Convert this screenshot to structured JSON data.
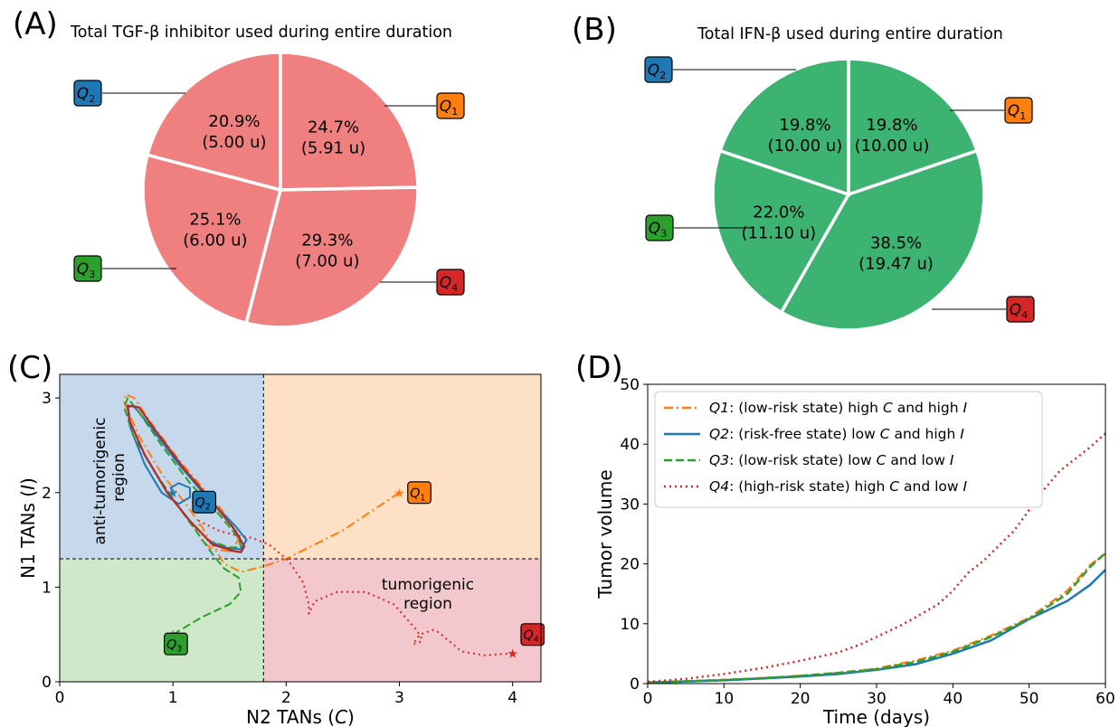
{
  "panels": {
    "A": {
      "label": "(A)",
      "title": "Total TGF-β inhibitor used during entire duration"
    },
    "B": {
      "label": "(B)",
      "title": "Total IFN-β used during entire duration"
    },
    "C": {
      "label": "(C)",
      "region_anti_line1": "anti-tumorigenic",
      "region_anti_line2": "region",
      "region_tumor_line1": "tumorigenic",
      "region_tumor_line2": "region"
    },
    "D": {
      "label": "(D)"
    }
  },
  "quadrant_labels": {
    "Q1": {
      "base": "Q",
      "sub": "1",
      "color": "#ff7f0e"
    },
    "Q2": {
      "base": "Q",
      "sub": "2",
      "color": "#1f77b4"
    },
    "Q3": {
      "base": "Q",
      "sub": "3",
      "color": "#2ca02c"
    },
    "Q4": {
      "base": "Q",
      "sub": "4",
      "color": "#d62728"
    }
  },
  "chart_data": [
    {
      "type": "pie",
      "panel": "A",
      "title": "Total TGF-β inhibitor used during entire duration",
      "color": "#f08080",
      "slices": [
        {
          "quadrant": "Q1",
          "percent": 24.7,
          "amount": 5.91,
          "pct_label": "24.7%",
          "amt_label": "(5.91 u)"
        },
        {
          "quadrant": "Q4",
          "percent": 29.3,
          "amount": 7.0,
          "pct_label": "29.3%",
          "amt_label": "(7.00 u)"
        },
        {
          "quadrant": "Q3",
          "percent": 25.1,
          "amount": 6.0,
          "pct_label": "25.1%",
          "amt_label": "(6.00 u)"
        },
        {
          "quadrant": "Q2",
          "percent": 20.9,
          "amount": 5.0,
          "pct_label": "20.9%",
          "amt_label": "(5.00 u)"
        }
      ]
    },
    {
      "type": "pie",
      "panel": "B",
      "title": "Total IFN-β used during entire duration",
      "color": "#3cb371",
      "slices": [
        {
          "quadrant": "Q1",
          "percent": 19.8,
          "amount": 10.0,
          "pct_label": "19.8%",
          "amt_label": "(10.00 u)"
        },
        {
          "quadrant": "Q4",
          "percent": 38.5,
          "amount": 19.47,
          "pct_label": "38.5%",
          "amt_label": "(19.47 u)"
        },
        {
          "quadrant": "Q3",
          "percent": 22.0,
          "amount": 11.1,
          "pct_label": "22.0%",
          "amt_label": "(11.10 u)"
        },
        {
          "quadrant": "Q2",
          "percent": 19.8,
          "amount": 10.0,
          "pct_label": "19.8%",
          "amt_label": "(10.00 u)"
        }
      ]
    },
    {
      "type": "line",
      "panel": "C",
      "xlabel": "N2 TANs (C)",
      "ylabel": "N1 TANs (I)",
      "xlim": [
        0,
        4.25
      ],
      "ylim": [
        0,
        3.25
      ],
      "xticks": [
        0,
        1,
        2,
        3,
        4
      ],
      "yticks": [
        0,
        1,
        2,
        3
      ],
      "threshold_x": 1.8,
      "threshold_y": 1.3,
      "region_colors": {
        "anti_tumorigenic": "#c6d9ec",
        "q1_region": "#fde0c5",
        "q3_region": "#cfe8c9",
        "tumorigenic": "#f3c8cc"
      },
      "series": [
        {
          "quadrant": "Q1",
          "color": "#ff7f0e",
          "dash": "dashdot",
          "start": [
            3.0,
            2.0
          ],
          "points": [
            [
              3.0,
              2.0
            ],
            [
              2.5,
              1.6
            ],
            [
              2.0,
              1.3
            ],
            [
              1.8,
              1.22
            ],
            [
              1.6,
              1.16
            ],
            [
              1.45,
              1.25
            ],
            [
              1.35,
              1.45
            ],
            [
              1.25,
              1.65
            ],
            [
              1.1,
              1.9
            ],
            [
              0.9,
              2.2
            ],
            [
              0.7,
              2.6
            ],
            [
              0.57,
              2.95
            ],
            [
              0.58,
              3.04
            ],
            [
              0.66,
              3.0
            ],
            [
              0.8,
              2.75
            ],
            [
              1.05,
              2.35
            ],
            [
              1.3,
              2.0
            ],
            [
              1.5,
              1.72
            ],
            [
              1.58,
              1.5
            ],
            [
              1.5,
              1.38
            ],
            [
              1.35,
              1.4
            ],
            [
              1.25,
              1.5
            ],
            [
              1.2,
              1.62
            ],
            [
              1.25,
              1.68
            ]
          ]
        },
        {
          "quadrant": "Q2",
          "color": "#1f77b4",
          "dash": "solid",
          "start": [
            1.0,
            2.0
          ],
          "points": [
            [
              1.0,
              2.0
            ],
            [
              0.98,
              2.05
            ],
            [
              1.05,
              2.1
            ],
            [
              1.15,
              2.05
            ],
            [
              1.15,
              1.95
            ],
            [
              1.05,
              1.88
            ],
            [
              0.9,
              2.0
            ],
            [
              0.75,
              2.3
            ],
            [
              0.62,
              2.7
            ],
            [
              0.6,
              2.9
            ],
            [
              0.65,
              2.92
            ],
            [
              0.8,
              2.7
            ],
            [
              1.05,
              2.3
            ],
            [
              1.3,
              1.95
            ],
            [
              1.55,
              1.65
            ],
            [
              1.65,
              1.5
            ],
            [
              1.6,
              1.4
            ],
            [
              1.45,
              1.42
            ],
            [
              1.3,
              1.5
            ]
          ]
        },
        {
          "quadrant": "Q3",
          "color": "#2ca02c",
          "dash": "dashed",
          "start": [
            1.0,
            0.5
          ],
          "points": [
            [
              1.0,
              0.5
            ],
            [
              1.25,
              0.68
            ],
            [
              1.5,
              0.82
            ],
            [
              1.6,
              0.95
            ],
            [
              1.58,
              1.1
            ],
            [
              1.45,
              1.2
            ],
            [
              1.35,
              1.35
            ],
            [
              1.2,
              1.6
            ],
            [
              1.05,
              1.85
            ],
            [
              0.85,
              2.2
            ],
            [
              0.65,
              2.6
            ],
            [
              0.57,
              2.9
            ],
            [
              0.6,
              3.0
            ],
            [
              0.7,
              2.85
            ],
            [
              0.9,
              2.5
            ],
            [
              1.15,
              2.1
            ],
            [
              1.4,
              1.78
            ],
            [
              1.58,
              1.52
            ],
            [
              1.6,
              1.42
            ],
            [
              1.5,
              1.42
            ],
            [
              1.35,
              1.48
            ]
          ]
        },
        {
          "quadrant": "Q4",
          "color": "#d62728",
          "dash": "dotted",
          "start": [
            4.0,
            0.3
          ],
          "points": [
            [
              4.0,
              0.3
            ],
            [
              3.75,
              0.28
            ],
            [
              3.55,
              0.32
            ],
            [
              3.45,
              0.42
            ],
            [
              3.35,
              0.52
            ],
            [
              3.3,
              0.55
            ],
            [
              3.18,
              0.5
            ],
            [
              3.12,
              0.4
            ],
            [
              3.18,
              0.42
            ],
            [
              3.2,
              0.45
            ],
            [
              3.15,
              0.55
            ],
            [
              2.95,
              0.82
            ],
            [
              2.7,
              0.95
            ],
            [
              2.45,
              0.95
            ],
            [
              2.25,
              0.85
            ],
            [
              2.2,
              0.72
            ],
            [
              2.2,
              0.82
            ],
            [
              2.15,
              1.05
            ],
            [
              2.02,
              1.28
            ],
            [
              1.85,
              1.45
            ],
            [
              1.7,
              1.52
            ],
            [
              1.55,
              1.55
            ],
            [
              1.4,
              1.6
            ],
            [
              1.2,
              1.72
            ]
          ]
        },
        {
          "quadrant": "all",
          "color": "#b03030",
          "dash": "solid",
          "start": null,
          "points": [
            [
              1.55,
              1.38
            ],
            [
              1.35,
              1.45
            ],
            [
              1.15,
              1.7
            ],
            [
              0.95,
              2.0
            ],
            [
              0.75,
              2.4
            ],
            [
              0.62,
              2.75
            ],
            [
              0.6,
              2.92
            ],
            [
              0.7,
              2.9
            ],
            [
              0.85,
              2.65
            ],
            [
              1.1,
              2.25
            ],
            [
              1.35,
              1.9
            ],
            [
              1.55,
              1.6
            ],
            [
              1.63,
              1.43
            ],
            [
              1.6,
              1.37
            ],
            [
              1.5,
              1.39
            ]
          ]
        }
      ],
      "markers": {
        "Q1": [
          3.0,
          2.0
        ],
        "Q2": [
          1.1,
          1.9
        ],
        "Q3": [
          0.85,
          0.4
        ],
        "Q4": [
          4.0,
          0.5
        ]
      }
    },
    {
      "type": "line",
      "panel": "D",
      "xlabel": "Time (days)",
      "ylabel": "Tumor volume",
      "xlim": [
        0,
        60
      ],
      "ylim": [
        0,
        50
      ],
      "xticks": [
        0,
        10,
        20,
        30,
        40,
        50,
        60
      ],
      "yticks": [
        0,
        10,
        20,
        30,
        40,
        50
      ],
      "legend_position": "top-left",
      "series": [
        {
          "name": "Q1",
          "legend_rest": ":  (low-risk state) high C and high I",
          "color": "#ff7f0e",
          "dash": "dashdot",
          "x": [
            0,
            5,
            10,
            15,
            20,
            25,
            30,
            35,
            40,
            45,
            50,
            55,
            58,
            60
          ],
          "y": [
            0.2,
            0.4,
            0.6,
            0.9,
            1.3,
            1.8,
            2.5,
            3.8,
            5.5,
            8.0,
            11.0,
            15.5,
            19.8,
            21.7
          ]
        },
        {
          "name": "Q2",
          "legend_rest": ":  (risk-free state) low C and high I",
          "color": "#1f77b4",
          "dash": "solid",
          "x": [
            0,
            5,
            10,
            15,
            20,
            25,
            30,
            35,
            40,
            45,
            50,
            55,
            58,
            60
          ],
          "y": [
            0.2,
            0.35,
            0.55,
            0.85,
            1.2,
            1.6,
            2.3,
            3.2,
            5.0,
            7.2,
            10.8,
            13.8,
            16.5,
            19.0
          ]
        },
        {
          "name": "Q3",
          "legend_rest": ":  (low-risk state) low C and low I",
          "color": "#2ca02c",
          "dash": "dashed",
          "x": [
            0,
            5,
            10,
            15,
            20,
            25,
            30,
            35,
            40,
            45,
            50,
            55,
            58,
            60
          ],
          "y": [
            0.2,
            0.4,
            0.6,
            0.9,
            1.3,
            1.8,
            2.4,
            3.6,
            5.3,
            7.8,
            10.8,
            15.0,
            19.5,
            21.8
          ]
        },
        {
          "name": "Q4",
          "legend_rest": ":  (high-risk state) high C and low I",
          "color": "#d62728",
          "dash": "dotted",
          "x": [
            0,
            5,
            10,
            15,
            20,
            25,
            28,
            30,
            33,
            35,
            38,
            40,
            42,
            44,
            46,
            48,
            50,
            52,
            54,
            56,
            58,
            60
          ],
          "y": [
            0.3,
            0.8,
            1.6,
            2.6,
            3.8,
            5.2,
            6.6,
            7.8,
            9.6,
            11.0,
            13.2,
            15.5,
            18.5,
            20.5,
            23.0,
            25.5,
            29.0,
            32.5,
            35.5,
            37.5,
            39.5,
            41.8
          ]
        }
      ]
    }
  ]
}
